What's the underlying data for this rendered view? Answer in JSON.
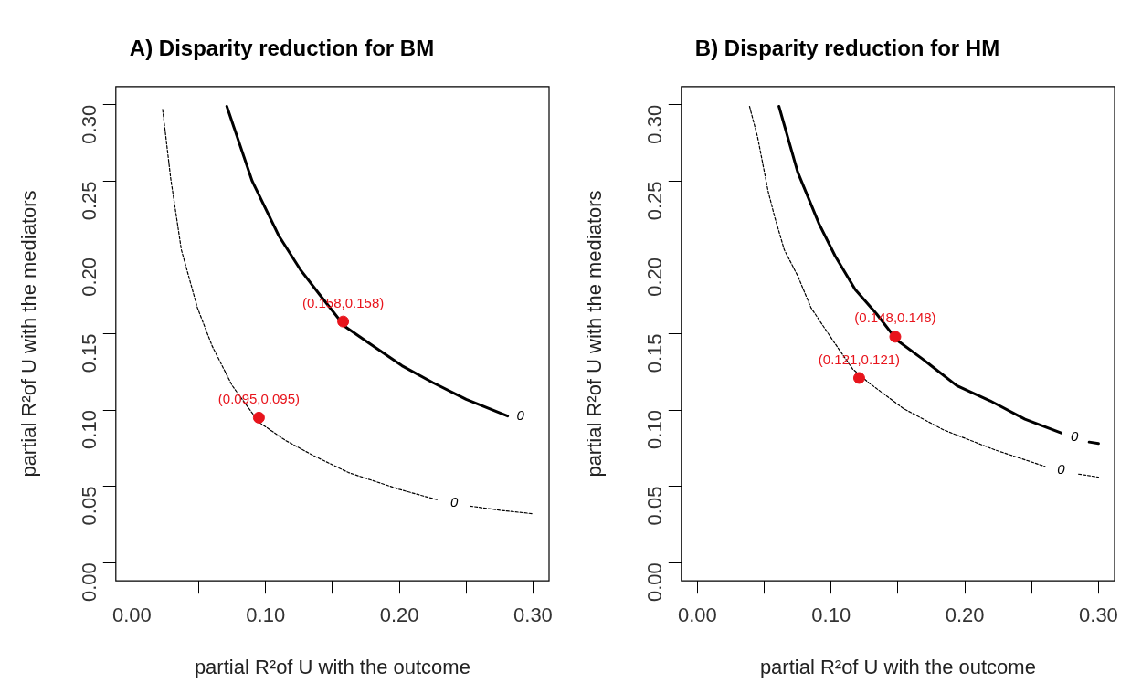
{
  "chart_data": [
    {
      "type": "line",
      "title": "A) Disparity reduction for BM",
      "xlabel": "partial R²of U with the outcome",
      "ylabel": "partial R²of U with the mediators",
      "xlim": [
        -0.012,
        0.312
      ],
      "ylim": [
        -0.012,
        0.312
      ],
      "xticks": [
        {
          "value": 0,
          "label": "0.00"
        },
        {
          "value": 0.05,
          "label": null
        },
        {
          "value": 0.1,
          "label": "0.10"
        },
        {
          "value": 0.15,
          "label": null
        },
        {
          "value": 0.2,
          "label": "0.20"
        },
        {
          "value": 0.25,
          "label": null
        },
        {
          "value": 0.3,
          "label": "0.30"
        }
      ],
      "yticks": [
        {
          "value": 0,
          "label": "0.00"
        },
        0.05,
        {
          "value": 0.1,
          "label": "0.10"
        },
        0.15,
        {
          "value": 0.2,
          "label": "0.20"
        },
        0.25,
        {
          "value": 0.3,
          "label": "0.30"
        }
      ],
      "series": [
        {
          "type": "line",
          "name": "0",
          "color": "#000000",
          "line_style": "solid",
          "marker": "none",
          "x": [
            0.071,
            0.09,
            0.11,
            0.126,
            0.141,
            0.159,
            0.177,
            0.202,
            0.225,
            0.25,
            0.281
          ],
          "values": [
            0.299,
            0.25,
            0.214,
            0.192,
            0.175,
            0.155,
            0.144,
            0.129,
            0.118,
            0.107,
            0.096
          ]
        },
        {
          "type": "line",
          "name": "0",
          "color": "#000000",
          "line_style": "dashed",
          "marker": "none",
          "x": [
            0.023,
            0.029,
            0.037,
            0.049,
            0.06,
            0.075,
            0.095,
            0.115,
            0.136,
            0.162,
            0.2,
            0.229,
            0.241,
            0.253,
            0.278,
            0.3
          ],
          "values": [
            0.297,
            0.252,
            0.205,
            0.167,
            0.142,
            0.116,
            0.092,
            0.08,
            0.07,
            0.059,
            0.048,
            0.041,
            null,
            0.037,
            0.034,
            0.032
          ]
        },
        {
          "type": "scatter",
          "color": "#e8141c",
          "marker": "circle",
          "x": [
            0.158,
            0.095
          ],
          "values": [
            0.158,
            0.095
          ],
          "value_labels": [
            "(0.158,0.158)",
            "(0.095,0.095)"
          ]
        }
      ]
    },
    {
      "type": "line",
      "title": "B) Disparity reduction for HM",
      "xlabel": "partial R²of U with the outcome",
      "ylabel": "partial R²of U with the mediators",
      "xlim": [
        -0.012,
        0.312
      ],
      "ylim": [
        -0.012,
        0.312
      ],
      "xticks": [
        {
          "value": 0,
          "label": "0.00"
        },
        {
          "value": 0.05,
          "label": null
        },
        {
          "value": 0.1,
          "label": "0.10"
        },
        {
          "value": 0.15,
          "label": null
        },
        {
          "value": 0.2,
          "label": "0.20"
        },
        {
          "value": 0.25,
          "label": null
        },
        {
          "value": 0.3,
          "label": "0.30"
        }
      ],
      "yticks": [
        {
          "value": 0,
          "label": "0.00"
        },
        0.05,
        {
          "value": 0.1,
          "label": "0.10"
        },
        0.15,
        {
          "value": 0.2,
          "label": "0.20"
        },
        0.25,
        {
          "value": 0.3,
          "label": "0.30"
        }
      ],
      "series": [
        {
          "type": "line",
          "name": "0",
          "color": "#000000",
          "line_style": "solid",
          "marker": "none",
          "x": [
            0.061,
            0.075,
            0.091,
            0.103,
            0.118,
            0.134,
            0.149,
            0.169,
            0.194,
            0.219,
            0.245,
            0.272,
            0.282,
            0.293,
            0.3
          ],
          "values": [
            0.299,
            0.256,
            0.222,
            0.201,
            0.179,
            0.163,
            0.146,
            0.133,
            0.116,
            0.106,
            0.094,
            0.085,
            null,
            0.079,
            0.078
          ]
        },
        {
          "type": "line",
          "name": "0",
          "color": "#000000",
          "line_style": "dashed",
          "marker": "none",
          "x": [
            0.039,
            0.045,
            0.053,
            0.058,
            0.065,
            0.075,
            0.085,
            0.101,
            0.116,
            0.128,
            0.154,
            0.184,
            0.222,
            0.26,
            0.272,
            0.285,
            0.3
          ],
          "values": [
            0.299,
            0.279,
            0.243,
            0.226,
            0.205,
            0.188,
            0.167,
            0.146,
            0.127,
            0.118,
            0.101,
            0.087,
            0.074,
            0.063,
            null,
            0.058,
            0.056
          ]
        },
        {
          "type": "scatter",
          "color": "#e8141c",
          "marker": "circle",
          "x": [
            0.148,
            0.121
          ],
          "values": [
            0.148,
            0.121
          ],
          "value_labels": [
            "(0.148,0.148)",
            "(0.121,0.121)"
          ]
        }
      ]
    }
  ]
}
